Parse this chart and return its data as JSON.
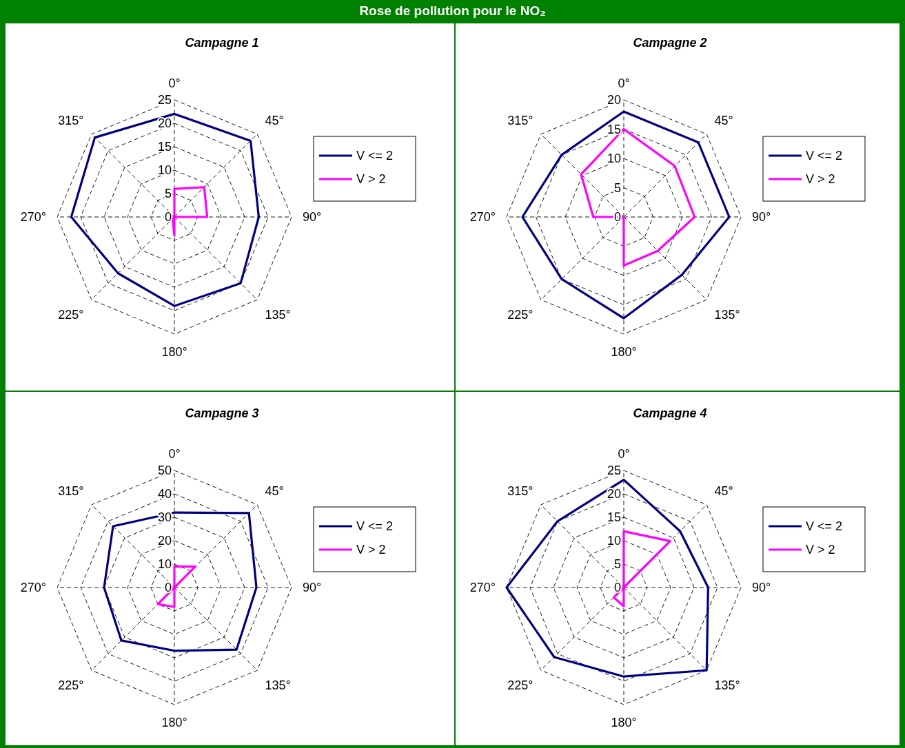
{
  "chart_data": [
    {
      "type": "radar",
      "title": "Campagne 1",
      "annotations": [
        "Rose de pollution pour le NO₂"
      ],
      "categories": [
        "0°",
        "45°",
        "90°",
        "135°",
        "180°",
        "225°",
        "270°",
        "315°"
      ],
      "ylim": [
        0,
        25
      ],
      "yticks": [
        0,
        5,
        10,
        15,
        20,
        25
      ],
      "grid": true,
      "legend": "right",
      "series": [
        {
          "name": "V <= 2",
          "color": "#000080",
          "values": [
            22,
            23,
            18,
            20,
            19,
            17,
            22,
            24
          ]
        },
        {
          "name": "V > 2",
          "color": "#ff00ff",
          "values": [
            6,
            9,
            7,
            0,
            4,
            0.5,
            0,
            0
          ]
        }
      ]
    },
    {
      "type": "radar",
      "title": "Campagne 2",
      "categories": [
        "0°",
        "45°",
        "90°",
        "135°",
        "180°",
        "225°",
        "270°",
        "315°"
      ],
      "ylim": [
        0,
        20
      ],
      "yticks": [
        0,
        5,
        10,
        15,
        20
      ],
      "grid": true,
      "legend": "right",
      "series": [
        {
          "name": "V <= 2",
          "color": "#000080",
          "values": [
            18,
            18,
            18,
            14,
            17.3,
            15,
            17.3,
            15
          ]
        },
        {
          "name": "V > 2",
          "color": "#ff00ff",
          "values": [
            15,
            12.3,
            12.1,
            8.2,
            8.3,
            0,
            5.2,
            10.3
          ]
        }
      ]
    },
    {
      "type": "radar",
      "title": "Campagne 3",
      "categories": [
        "0°",
        "45°",
        "90°",
        "135°",
        "180°",
        "225°",
        "270°",
        "315°"
      ],
      "ylim": [
        0,
        50
      ],
      "yticks": [
        0,
        10,
        20,
        30,
        40,
        50
      ],
      "grid": true,
      "legend": "right",
      "series": [
        {
          "name": "V <= 2",
          "color": "#000080",
          "values": [
            32,
            45,
            35,
            37.5,
            27,
            32,
            30,
            37
          ]
        },
        {
          "name": "V > 2",
          "color": "#ff00ff",
          "values": [
            9,
            12.6,
            0,
            0,
            8.3,
            10,
            0,
            0
          ]
        }
      ]
    },
    {
      "type": "radar",
      "title": "Campagne 4",
      "categories": [
        "0°",
        "45°",
        "90°",
        "135°",
        "180°",
        "225°",
        "270°",
        "315°"
      ],
      "ylim": [
        0,
        25
      ],
      "yticks": [
        0,
        5,
        10,
        15,
        20,
        25
      ],
      "grid": true,
      "legend": "right",
      "series": [
        {
          "name": "V <= 2",
          "color": "#000080",
          "values": [
            23,
            17,
            18,
            25,
            19,
            21,
            25,
            20
          ]
        },
        {
          "name": "V > 2",
          "color": "#ff00ff",
          "values": [
            12,
            14,
            0,
            0,
            4,
            3,
            0,
            0
          ]
        }
      ]
    }
  ]
}
